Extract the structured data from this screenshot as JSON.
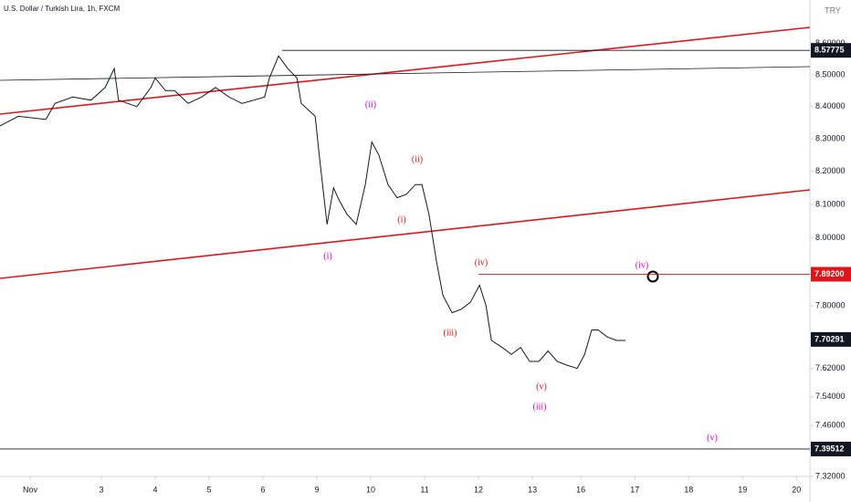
{
  "chart_data": {
    "type": "line",
    "title": "U.S. Dollar / Turkish Lira, 1h, FXCM",
    "currency": "TRY",
    "log_scale": true,
    "color": "#131722",
    "xlim": [
      -0.88,
      14.15
    ],
    "xticks": [
      {
        "value": -0.32,
        "label": "Nov"
      },
      {
        "value": 1,
        "label": "3"
      },
      {
        "value": 2,
        "label": "4"
      },
      {
        "value": 3,
        "label": "5"
      },
      {
        "value": 4,
        "label": "6"
      },
      {
        "value": 5,
        "label": "9"
      },
      {
        "value": 6,
        "label": "10"
      },
      {
        "value": 7,
        "label": "11"
      },
      {
        "value": 8,
        "label": "12"
      },
      {
        "value": 9,
        "label": "13"
      },
      {
        "value": 9.9,
        "label": "16"
      },
      {
        "value": 10.9,
        "label": "17"
      },
      {
        "value": 11.9,
        "label": "18"
      },
      {
        "value": 12.9,
        "label": "19"
      },
      {
        "value": 13.9,
        "label": "20"
      }
    ],
    "ylim": [
      7.32,
      8.74
    ],
    "yticks": [
      {
        "value": 8.6,
        "label": "8.60000"
      },
      {
        "value": 8.5,
        "label": "8.50000"
      },
      {
        "value": 8.4,
        "label": "8.40000"
      },
      {
        "value": 8.3,
        "label": "8.30000"
      },
      {
        "value": 8.2,
        "label": "8.20000"
      },
      {
        "value": 8.1,
        "label": "8.10000"
      },
      {
        "value": 8.0,
        "label": "8.00000"
      },
      {
        "value": 7.8,
        "label": "7.80000"
      },
      {
        "value": 7.62,
        "label": "7.62000"
      },
      {
        "value": 7.54,
        "label": "7.54000"
      },
      {
        "value": 7.46,
        "label": "7.46000"
      },
      {
        "value": 7.32,
        "label": "7.32000"
      }
    ],
    "x": [
      -0.88,
      -0.54,
      -0.03,
      0.14,
      0.47,
      0.81,
      1.07,
      1.24,
      1.32,
      1.66,
      1.92,
      2.0,
      2.19,
      2.36,
      2.61,
      2.86,
      3.12,
      3.37,
      3.61,
      4.03,
      4.12,
      4.29,
      4.46,
      4.63,
      4.71,
      4.97,
      5.05,
      5.19,
      5.31,
      5.42,
      5.56,
      5.73,
      5.9,
      6.02,
      6.15,
      6.32,
      6.49,
      6.66,
      6.83,
      6.95,
      7.08,
      7.22,
      7.34,
      7.51,
      7.68,
      7.85,
      8.02,
      8.14,
      8.24,
      8.44,
      8.61,
      8.78,
      8.95,
      9.12,
      9.29,
      9.46,
      9.63,
      9.83,
      9.97,
      10.1,
      10.22,
      10.39,
      10.56,
      10.73
    ],
    "values": [
      8.34,
      8.37,
      8.36,
      8.41,
      8.43,
      8.42,
      8.46,
      8.52,
      8.42,
      8.4,
      8.46,
      8.49,
      8.45,
      8.45,
      8.41,
      8.43,
      8.46,
      8.43,
      8.41,
      8.43,
      8.49,
      8.56,
      8.52,
      8.49,
      8.41,
      8.37,
      8.24,
      8.04,
      8.15,
      8.11,
      8.07,
      8.04,
      8.16,
      8.29,
      8.25,
      8.16,
      8.12,
      8.13,
      8.16,
      8.16,
      8.07,
      7.93,
      7.83,
      7.78,
      7.79,
      7.81,
      7.86,
      7.8,
      7.7,
      7.68,
      7.66,
      7.68,
      7.64,
      7.64,
      7.67,
      7.64,
      7.63,
      7.62,
      7.66,
      7.73,
      7.73,
      7.71,
      7.7,
      7.7
    ],
    "price_levels": [
      {
        "value": 8.57775,
        "label": "8.57775",
        "color": "#131722"
      },
      {
        "value": 7.892,
        "label": "7.89200",
        "color": "#e0151b"
      },
      {
        "value": 7.70291,
        "label": "7.70291",
        "color": "#131722"
      },
      {
        "value": 7.39512,
        "label": "7.39512",
        "color": "#131722"
      }
    ],
    "wave_labels": {
      "minor": [
        "(i)",
        "(ii)",
        "(iii)",
        "(iv)",
        "(v)"
      ],
      "major": [
        "(i)",
        "(ii)",
        "(iii)",
        "(iv)",
        "(v)"
      ]
    }
  }
}
